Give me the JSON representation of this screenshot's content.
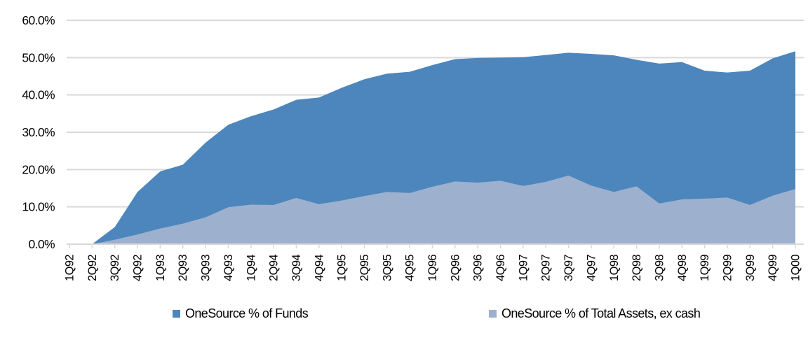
{
  "page": {
    "background": "#FFFFFF",
    "title": ""
  },
  "chart_data": {
    "type": "area",
    "overlap_mode": "overlapping",
    "title": "",
    "xlabel": "",
    "ylabel": "",
    "categories": [
      "1Q92",
      "2Q92",
      "3Q92",
      "4Q92",
      "1Q93",
      "2Q93",
      "3Q93",
      "4Q93",
      "1Q94",
      "2Q94",
      "3Q94",
      "4Q94",
      "1Q95",
      "2Q95",
      "3Q95",
      "4Q95",
      "1Q96",
      "2Q96",
      "3Q96",
      "4Q96",
      "1Q97",
      "2Q97",
      "3Q97",
      "4Q97",
      "1Q98",
      "2Q98",
      "3Q98",
      "4Q98",
      "1Q99",
      "2Q99",
      "3Q99",
      "4Q99",
      "1Q00"
    ],
    "series": [
      {
        "name": "OneSource % of Funds",
        "color": "#4C86BD",
        "values": [
          0.0,
          0.0,
          4.6,
          14.0,
          19.5,
          21.3,
          27.2,
          32.0,
          34.3,
          36.1,
          38.7,
          39.3,
          41.9,
          44.2,
          45.7,
          46.2,
          48.0,
          49.6,
          49.9,
          50.0,
          50.1,
          50.7,
          51.3,
          51.0,
          50.6,
          49.4,
          48.4,
          48.8,
          46.5,
          46.0,
          46.5,
          49.8,
          51.7
        ]
      },
      {
        "name": "OneSource % of Total Assets, ex cash",
        "color": "#9DB1CE",
        "values": [
          0.0,
          0.0,
          1.2,
          2.6,
          4.2,
          5.5,
          7.2,
          9.9,
          10.6,
          10.5,
          12.4,
          10.7,
          11.7,
          12.9,
          14.0,
          13.7,
          15.4,
          16.8,
          16.5,
          17.0,
          15.6,
          16.7,
          18.4,
          15.7,
          14.0,
          15.5,
          10.9,
          12.0,
          12.2,
          12.5,
          10.5,
          13.0,
          14.8
        ]
      }
    ],
    "y_axis": {
      "min": 0,
      "max": 60,
      "tick_values": [
        0,
        10,
        20,
        30,
        40,
        50,
        60
      ],
      "tick_labels": [
        "0.0%",
        "10.0%",
        "20.0%",
        "30.0%",
        "40.0%",
        "50.0%",
        "60.0%"
      ]
    },
    "grid": {
      "horizontal": true,
      "color": "#D9D9D9"
    },
    "axis_color": "#D9D9D9",
    "text_color": "#000000",
    "legend_position": "bottom"
  }
}
